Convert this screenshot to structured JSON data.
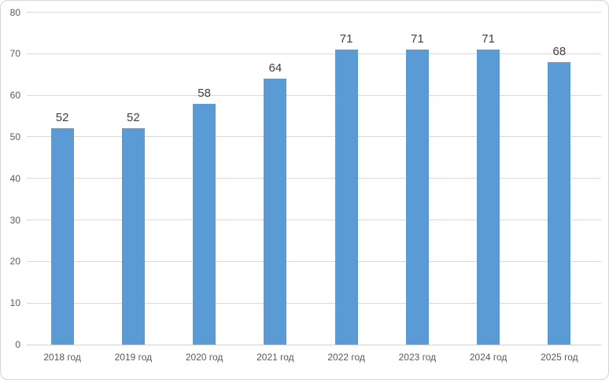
{
  "chart_data": {
    "type": "bar",
    "categories": [
      "2018 год",
      "2019 год",
      "2020 год",
      "2021 год",
      "2022 год",
      "2023 год",
      "2024 год",
      "2025 год"
    ],
    "values": [
      52,
      52,
      58,
      64,
      71,
      71,
      71,
      68
    ],
    "title": "",
    "xlabel": "",
    "ylabel": "",
    "ylim": [
      0,
      80
    ],
    "ytick_step": 10,
    "ytick_labels": [
      "0",
      "10",
      "20",
      "30",
      "40",
      "50",
      "60",
      "70",
      "80"
    ],
    "grid": true,
    "legend": false,
    "data_labels": true,
    "colors": {
      "bar": "#5B9BD5",
      "gridline": "#D9D9D9",
      "axis_line": "#D2D0D0",
      "tick_label": "#595959",
      "data_label": "#404040",
      "frame_border": "#D6D4D4",
      "background": "#FFFFFF"
    }
  }
}
